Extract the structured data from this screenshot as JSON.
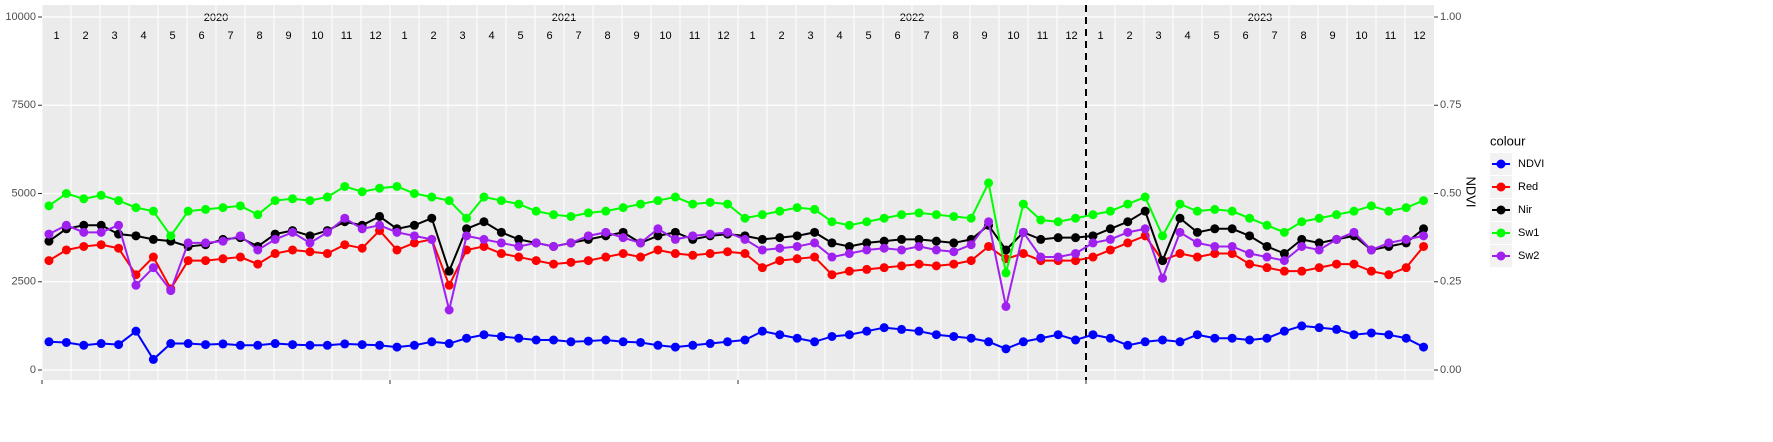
{
  "chart_data": {
    "type": "line",
    "y2_label": "NDVI",
    "legend_title": "colour",
    "legend": "right",
    "grid": true,
    "years": [
      "2020",
      "2021",
      "2022",
      "2023"
    ],
    "months": [
      "1",
      "2",
      "3",
      "4",
      "5",
      "6",
      "7",
      "8",
      "9",
      "10",
      "11",
      "12"
    ],
    "vline": 2023,
    "xlim": [
      2020,
      2024
    ],
    "xticks": [
      2020,
      2021,
      2022,
      2023
    ],
    "ylim": [
      -283,
      10340
    ],
    "yticks": [
      0,
      2500,
      5000,
      7500,
      10000
    ],
    "y2lim": [
      -0.0283,
      1.034
    ],
    "y2ticks": [
      {
        "value": 0,
        "label": "0.00"
      },
      {
        "value": 0.25,
        "label": "0.25"
      },
      {
        "value": 0.5,
        "label": "0.50"
      },
      {
        "value": 0.75,
        "label": "0.75"
      },
      {
        "value": 1,
        "label": "1.00"
      }
    ],
    "x": [
      2020.02,
      2020.07,
      2020.12,
      2020.17,
      2020.22,
      2020.27,
      2020.32,
      2020.37,
      2020.42,
      2020.47,
      2020.52,
      2020.57,
      2020.62,
      2020.67,
      2020.72,
      2020.77,
      2020.82,
      2020.87,
      2020.92,
      2020.97,
      2021.02,
      2021.07,
      2021.12,
      2021.17,
      2021.22,
      2021.27,
      2021.32,
      2021.37,
      2021.42,
      2021.47,
      2021.52,
      2021.57,
      2021.62,
      2021.67,
      2021.72,
      2021.77,
      2021.82,
      2021.87,
      2021.92,
      2021.97,
      2022.02,
      2022.07,
      2022.12,
      2022.17,
      2022.22,
      2022.27,
      2022.32,
      2022.37,
      2022.42,
      2022.47,
      2022.52,
      2022.57,
      2022.62,
      2022.67,
      2022.72,
      2022.77,
      2022.82,
      2022.87,
      2022.92,
      2022.97,
      2023.02,
      2023.07,
      2023.12,
      2023.17,
      2023.22,
      2023.27,
      2023.32,
      2023.37,
      2023.42,
      2023.47,
      2023.52,
      2023.57,
      2023.62,
      2023.67,
      2023.72,
      2023.77,
      2023.82,
      2023.87,
      2023.92,
      2023.97
    ],
    "series": [
      {
        "name": "NDVI",
        "color": "#0000ff",
        "axis": "y2",
        "values": [
          0.08,
          0.078,
          0.07,
          0.075,
          0.072,
          0.11,
          0.03,
          0.075,
          0.075,
          0.072,
          0.074,
          0.07,
          0.07,
          0.075,
          0.072,
          0.07,
          0.07,
          0.074,
          0.072,
          0.07,
          0.065,
          0.07,
          0.08,
          0.075,
          0.09,
          0.1,
          0.095,
          0.09,
          0.085,
          0.085,
          0.08,
          0.082,
          0.085,
          0.08,
          0.078,
          0.07,
          0.065,
          0.07,
          0.075,
          0.08,
          0.085,
          0.11,
          0.1,
          0.09,
          0.08,
          0.095,
          0.1,
          0.11,
          0.12,
          0.115,
          0.11,
          0.1,
          0.095,
          0.09,
          0.08,
          0.06,
          0.08,
          0.09,
          0.1,
          0.085,
          0.1,
          0.09,
          0.07,
          0.08,
          0.085,
          0.08,
          0.1,
          0.09,
          0.09,
          0.085,
          0.09,
          0.11,
          0.125,
          0.12,
          0.115,
          0.1,
          0.105,
          0.1,
          0.09,
          0.065
        ]
      },
      {
        "name": "Red",
        "color": "#ff0000",
        "values": [
          3100,
          3400,
          3500,
          3550,
          3450,
          2700,
          3200,
          2300,
          3100,
          3100,
          3150,
          3200,
          3000,
          3300,
          3400,
          3350,
          3300,
          3550,
          3450,
          3950,
          3400,
          3600,
          3700,
          2400,
          3400,
          3500,
          3300,
          3200,
          3100,
          3000,
          3050,
          3100,
          3200,
          3300,
          3200,
          3400,
          3300,
          3250,
          3300,
          3350,
          3300,
          2900,
          3100,
          3150,
          3200,
          2700,
          2800,
          2850,
          2900,
          2950,
          3000,
          2950,
          3000,
          3100,
          3500,
          3150,
          3300,
          3100,
          3100,
          3100,
          3200,
          3400,
          3600,
          3800,
          3100,
          3300,
          3200,
          3300,
          3300,
          3000,
          2900,
          2800,
          2800,
          2900,
          3000,
          3000,
          2800,
          2700,
          2900,
          3500
        ]
      },
      {
        "name": "Nir",
        "color": "#000000",
        "values": [
          3650,
          4000,
          4100,
          4100,
          3850,
          3800,
          3700,
          3650,
          3500,
          3550,
          3700,
          3750,
          3500,
          3850,
          3950,
          3800,
          3950,
          4200,
          4100,
          4350,
          4000,
          4100,
          4300,
          2800,
          4000,
          4200,
          3900,
          3700,
          3600,
          3500,
          3600,
          3700,
          3800,
          3900,
          3600,
          3800,
          3900,
          3700,
          3800,
          3850,
          3800,
          3700,
          3750,
          3800,
          3900,
          3600,
          3500,
          3600,
          3650,
          3700,
          3700,
          3650,
          3600,
          3700,
          4100,
          3400,
          3900,
          3700,
          3750,
          3750,
          3800,
          4000,
          4200,
          4500,
          3100,
          4300,
          3900,
          4000,
          4000,
          3800,
          3500,
          3300,
          3700,
          3600,
          3700,
          3800,
          3400,
          3500,
          3600,
          4000
        ]
      },
      {
        "name": "Sw1",
        "color": "#00ff00",
        "values": [
          4650,
          5000,
          4850,
          4950,
          4800,
          4600,
          4500,
          3800,
          4500,
          4550,
          4600,
          4650,
          4400,
          4800,
          4850,
          4800,
          4900,
          5200,
          5050,
          5150,
          5200,
          5000,
          4900,
          4800,
          4300,
          4900,
          4800,
          4700,
          4500,
          4400,
          4350,
          4450,
          4500,
          4600,
          4700,
          4800,
          4900,
          4700,
          4750,
          4700,
          4300,
          4400,
          4500,
          4600,
          4550,
          4200,
          4100,
          4200,
          4300,
          4400,
          4450,
          4400,
          4350,
          4300,
          5300,
          2750,
          4700,
          4250,
          4200,
          4300,
          4400,
          4500,
          4700,
          4900,
          3800,
          4700,
          4500,
          4550,
          4500,
          4300,
          4100,
          3900,
          4200,
          4300,
          4400,
          4500,
          4650,
          4500,
          4600,
          4800
        ]
      },
      {
        "name": "Sw2",
        "color": "#a020f0",
        "values": [
          3850,
          4100,
          3900,
          3900,
          4100,
          2400,
          2900,
          2250,
          3600,
          3600,
          3650,
          3800,
          3400,
          3700,
          3900,
          3600,
          3900,
          4300,
          4000,
          4100,
          3900,
          3800,
          3700,
          1700,
          3800,
          3700,
          3600,
          3500,
          3600,
          3500,
          3600,
          3800,
          3900,
          3750,
          3600,
          4000,
          3700,
          3800,
          3850,
          3900,
          3700,
          3400,
          3450,
          3500,
          3600,
          3200,
          3300,
          3400,
          3450,
          3400,
          3500,
          3400,
          3350,
          3550,
          4200,
          1800,
          3900,
          3200,
          3200,
          3300,
          3600,
          3700,
          3900,
          4000,
          2600,
          3900,
          3600,
          3500,
          3500,
          3300,
          3200,
          3100,
          3500,
          3400,
          3700,
          3900,
          3400,
          3600,
          3700,
          3800
        ]
      }
    ]
  }
}
